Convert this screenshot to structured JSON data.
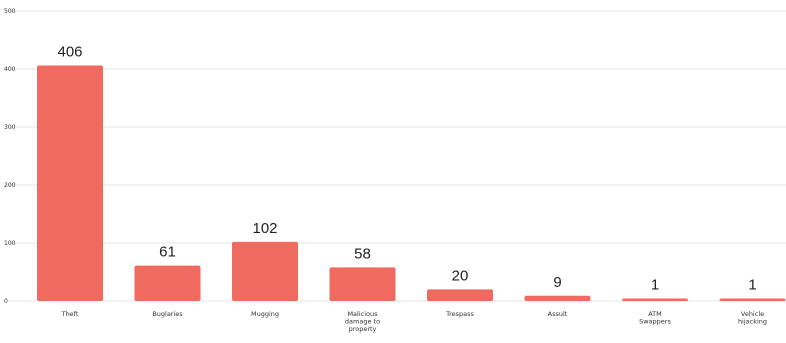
{
  "chart_data": {
    "type": "bar",
    "categories": [
      [
        "Theft"
      ],
      [
        "Buglaries"
      ],
      [
        "Mugging"
      ],
      [
        "Malicious",
        "damage to",
        "property"
      ],
      [
        "Trespass"
      ],
      [
        "Assult"
      ],
      [
        "ATM",
        "Swappers"
      ],
      [
        "Vehicle",
        "hijacking"
      ]
    ],
    "values": [
      406,
      61,
      102,
      58,
      20,
      9,
      1,
      1
    ],
    "ylim": [
      0,
      500
    ],
    "yticks": [
      0,
      100,
      200,
      300,
      400,
      500
    ],
    "grid": true,
    "bar_color": "#ef6a5f",
    "title": "",
    "xlabel": "",
    "ylabel": ""
  }
}
